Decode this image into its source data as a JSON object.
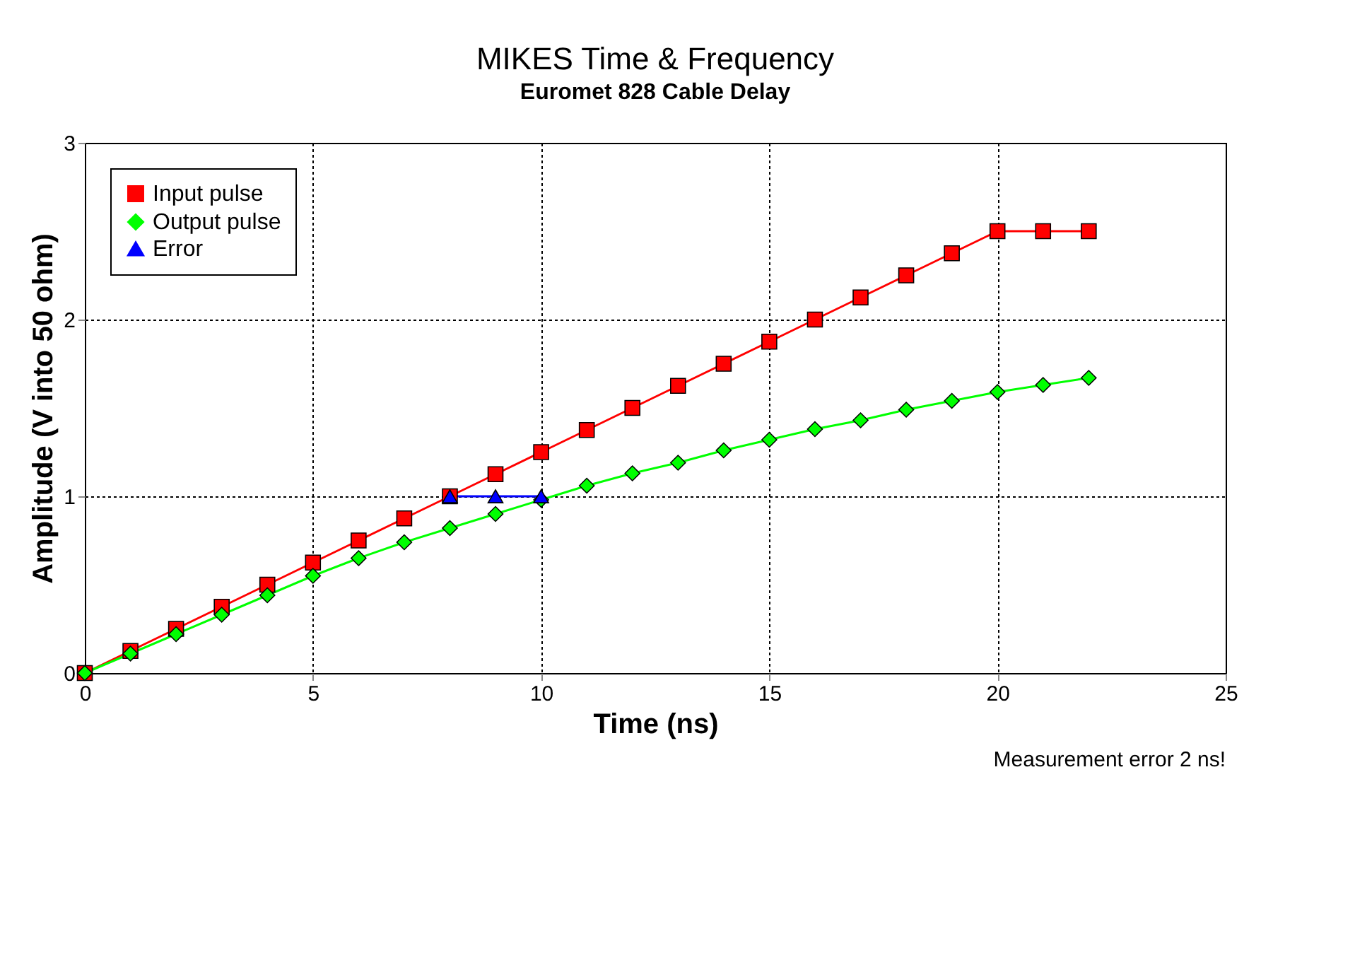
{
  "chart_data": {
    "type": "line",
    "title": "MIKES Time & Frequency",
    "subtitle": "Euromet 828 Cable Delay",
    "xlabel": "Time (ns)",
    "ylabel": "Amplitude (V into 50 ohm)",
    "x": [
      0,
      1,
      2,
      3,
      4,
      5,
      6,
      7,
      8,
      9,
      10,
      11,
      12,
      13,
      14,
      15,
      16,
      17,
      18,
      19,
      20,
      21,
      22
    ],
    "series": [
      {
        "name": "Input pulse",
        "color": "#ff0000",
        "marker": "square",
        "values": [
          0,
          0.125,
          0.25,
          0.375,
          0.5,
          0.625,
          0.75,
          0.875,
          1.0,
          1.125,
          1.25,
          1.375,
          1.5,
          1.625,
          1.75,
          1.875,
          2.0,
          2.125,
          2.25,
          2.375,
          2.5,
          2.5,
          2.5
        ]
      },
      {
        "name": "Output pulse",
        "color": "#00ff00",
        "marker": "diamond",
        "values": [
          0,
          0.11,
          0.22,
          0.33,
          0.44,
          0.55,
          0.65,
          0.74,
          0.82,
          0.9,
          0.98,
          1.06,
          1.13,
          1.19,
          1.26,
          1.32,
          1.38,
          1.43,
          1.49,
          1.54,
          1.59,
          1.63,
          1.67
        ]
      },
      {
        "name": "Error",
        "color": "#0000ff",
        "marker": "triangle",
        "x": [
          8,
          9,
          10
        ],
        "values": [
          1,
          1,
          1
        ]
      }
    ],
    "xlim": [
      0,
      25
    ],
    "xticks": [
      0,
      5,
      10,
      15,
      20,
      25
    ],
    "ylim": [
      0,
      3
    ],
    "yticks": [
      0,
      1,
      2,
      3
    ],
    "grid": true,
    "legend": "top left",
    "annotations": [
      "Measurement error 2 ns!"
    ]
  }
}
